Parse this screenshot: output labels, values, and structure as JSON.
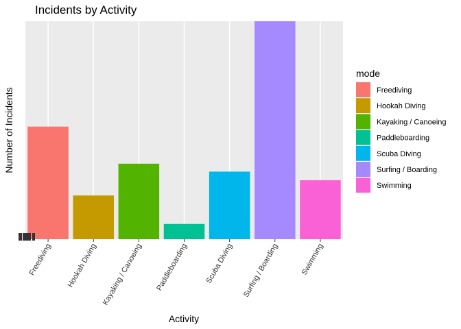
{
  "chart_data": {
    "type": "bar",
    "title": "Incidents by Activity",
    "xlabel": "Activity",
    "ylabel": "Number of Incidents",
    "categories": [
      "Freediving",
      "Hookah Diving",
      "Kayaking / Canoeing",
      "Paddleboarding",
      "Scuba Diving",
      "Surfing / Boarding",
      "Swimming"
    ],
    "values": [
      170,
      66,
      114,
      23,
      102,
      329,
      89
    ],
    "ylim": [
      0,
      329
    ],
    "colors": [
      "#F8766D",
      "#C49A00",
      "#53B400",
      "#00C094",
      "#00B6EB",
      "#A58AFF",
      "#FB61D7"
    ],
    "legend": {
      "title": "mode",
      "position": "right",
      "entries": [
        "Freediving",
        "Hookah Diving",
        "Kayaking / Canoeing",
        "Paddleboarding",
        "Scuba Diving",
        "Surfing / Boarding",
        "Swimming"
      ]
    },
    "grid": true,
    "panel_background": "#EBEBEB"
  }
}
